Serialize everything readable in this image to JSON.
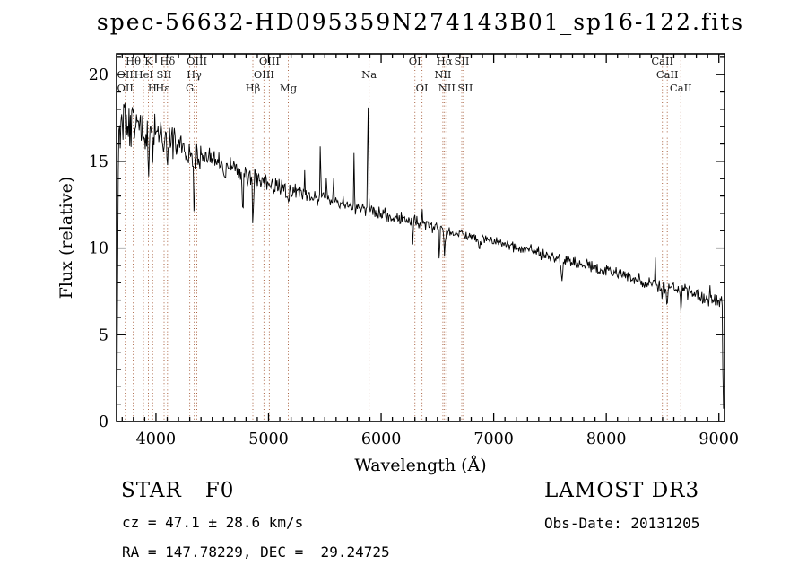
{
  "title": "spec-56632-HD095359N274143B01_sp16-122.fits",
  "annotations": {
    "object_class": "STAR",
    "subclass": "F0",
    "cz_line": "cz = 47.1 ± 28.6 km/s",
    "radec_line": "RA = 147.78229, DEC =  29.24725",
    "survey": "LAMOST DR3",
    "obs_date_line": "Obs-Date: 20131205"
  },
  "chart_data": {
    "type": "line",
    "title": "spec-56632-HD095359N274143B01_sp16-122.fits",
    "xlabel": "Wavelength (Å)",
    "ylabel": "Flux (relative)",
    "xlim": [
      3650,
      9050
    ],
    "ylim": [
      0,
      21.2
    ],
    "xticks": [
      4000,
      5000,
      6000,
      7000,
      8000,
      9000
    ],
    "yticks": [
      0,
      5,
      10,
      15,
      20
    ],
    "grid": false,
    "legend": "none",
    "line_color": "#000000",
    "marker_color": "#a0522d",
    "label_color": "#1a1a1a",
    "continuum": [
      [
        3670,
        17.2
      ],
      [
        3720,
        17.25
      ],
      [
        3780,
        17.1
      ],
      [
        3840,
        17.15
      ],
      [
        3900,
        17.0
      ],
      [
        3960,
        16.8
      ],
      [
        4020,
        16.6
      ],
      [
        4080,
        16.45
      ],
      [
        4150,
        16.2
      ],
      [
        4250,
        15.7
      ],
      [
        4350,
        15.3
      ],
      [
        4450,
        15.1
      ],
      [
        4550,
        14.9
      ],
      [
        4650,
        14.6
      ],
      [
        4750,
        14.3
      ],
      [
        4850,
        14.05
      ],
      [
        4950,
        13.85
      ],
      [
        5050,
        13.6
      ],
      [
        5150,
        13.4
      ],
      [
        5250,
        13.25
      ],
      [
        5350,
        13.05
      ],
      [
        5450,
        12.9
      ],
      [
        5550,
        12.7
      ],
      [
        5650,
        12.55
      ],
      [
        5750,
        12.4
      ],
      [
        5850,
        12.25
      ],
      [
        5950,
        12.1
      ],
      [
        6050,
        11.95
      ],
      [
        6150,
        11.8
      ],
      [
        6250,
        11.6
      ],
      [
        6350,
        11.45
      ],
      [
        6450,
        11.25
      ],
      [
        6550,
        11.05
      ],
      [
        6650,
        10.9
      ],
      [
        6750,
        10.75
      ],
      [
        6850,
        10.6
      ],
      [
        6950,
        10.45
      ],
      [
        7050,
        10.3
      ],
      [
        7150,
        10.15
      ],
      [
        7250,
        10.0
      ],
      [
        7350,
        9.85
      ],
      [
        7450,
        9.65
      ],
      [
        7550,
        9.45
      ],
      [
        7650,
        9.3
      ],
      [
        7750,
        9.1
      ],
      [
        7850,
        8.95
      ],
      [
        7950,
        8.8
      ],
      [
        8050,
        8.6
      ],
      [
        8150,
        8.45
      ],
      [
        8250,
        8.25
      ],
      [
        8350,
        8.05
      ],
      [
        8450,
        7.85
      ],
      [
        8550,
        7.7
      ],
      [
        8650,
        7.55
      ],
      [
        8750,
        7.4
      ],
      [
        8850,
        7.2
      ],
      [
        8950,
        7.0
      ],
      [
        9046,
        6.85
      ]
    ],
    "noise_profile": [
      [
        3670,
        1.8
      ],
      [
        3900,
        1.6
      ],
      [
        4100,
        1.15
      ],
      [
        4400,
        0.9
      ],
      [
        4800,
        0.72
      ],
      [
        5200,
        0.58
      ],
      [
        5600,
        0.5
      ],
      [
        6000,
        0.46
      ],
      [
        6500,
        0.4
      ],
      [
        7000,
        0.38
      ],
      [
        7500,
        0.4
      ],
      [
        8000,
        0.44
      ],
      [
        8600,
        0.5
      ],
      [
        9046,
        0.55
      ]
    ],
    "features": [
      [
        3933,
        -3.5,
        7
      ],
      [
        3970,
        -2.5,
        7
      ],
      [
        4102,
        -2.4,
        7
      ],
      [
        4340,
        -3.0,
        7
      ],
      [
        4773,
        -2.6,
        5
      ],
      [
        4861,
        -2.5,
        7
      ],
      [
        5175,
        -0.9,
        9
      ],
      [
        5320,
        1.6,
        4
      ],
      [
        5460,
        3.4,
        5
      ],
      [
        5515,
        1.8,
        4
      ],
      [
        5577,
        1.5,
        4
      ],
      [
        5760,
        3.0,
        4
      ],
      [
        5883,
        6.6,
        5
      ],
      [
        6280,
        -1.5,
        6
      ],
      [
        6363,
        0.9,
        4
      ],
      [
        6517,
        -2.0,
        5
      ],
      [
        6563,
        -1.4,
        7
      ],
      [
        6870,
        -0.8,
        10
      ],
      [
        7605,
        -1.1,
        12
      ],
      [
        8435,
        1.7,
        5
      ],
      [
        8498,
        -0.9,
        6
      ],
      [
        8542,
        -1.0,
        6
      ],
      [
        8662,
        -0.9,
        6
      ],
      [
        8920,
        1.0,
        4
      ],
      [
        9040,
        -6.3,
        7
      ]
    ],
    "spectral_lines": [
      3727,
      3798,
      3889,
      3933,
      3968,
      3970,
      4072,
      4102,
      4300,
      4340,
      4363,
      4861,
      4959,
      5007,
      5175,
      5893,
      6300,
      6363,
      6548,
      6563,
      6583,
      6716,
      6731,
      8498,
      8542,
      8662
    ],
    "line_labels": [
      {
        "text": "Hθ",
        "wl": 3798,
        "row": 1
      },
      {
        "text": "K",
        "wl": 3933,
        "row": 1
      },
      {
        "text": "Hδ",
        "wl": 4102,
        "row": 1
      },
      {
        "text": "OIII",
        "wl": 4363,
        "row": 1
      },
      {
        "text": "OIII",
        "wl": 5007,
        "row": 1
      },
      {
        "text": "OI",
        "wl": 6300,
        "row": 1
      },
      {
        "text": "Hα",
        "wl": 6563,
        "row": 1
      },
      {
        "text": "SII",
        "wl": 6716,
        "row": 1
      },
      {
        "text": "CaII",
        "wl": 8498,
        "row": 1
      },
      {
        "text": "OII",
        "wl": 3727,
        "row": 2
      },
      {
        "text": "HeI",
        "wl": 3889,
        "row": 2
      },
      {
        "text": "SII",
        "wl": 4072,
        "row": 2
      },
      {
        "text": "Hγ",
        "wl": 4340,
        "row": 2
      },
      {
        "text": "OIII",
        "wl": 4959,
        "row": 2
      },
      {
        "text": "Na",
        "wl": 5893,
        "row": 2
      },
      {
        "text": "NII",
        "wl": 6548,
        "row": 2
      },
      {
        "text": "CaII",
        "wl": 8542,
        "row": 2
      },
      {
        "text": "OII",
        "wl": 3727,
        "row": 3
      },
      {
        "text": "H",
        "wl": 3968,
        "row": 3
      },
      {
        "text": "Hε",
        "wl": 3970,
        "row": 3
      },
      {
        "text": "G",
        "wl": 4300,
        "row": 3
      },
      {
        "text": "Hβ",
        "wl": 4861,
        "row": 3
      },
      {
        "text": "Mg",
        "wl": 5175,
        "row": 3
      },
      {
        "text": "OI",
        "wl": 6363,
        "row": 3
      },
      {
        "text": "NII",
        "wl": 6583,
        "row": 3
      },
      {
        "text": "SII",
        "wl": 6731,
        "row": 3
      },
      {
        "text": "CaII",
        "wl": 8662,
        "row": 3
      }
    ]
  }
}
